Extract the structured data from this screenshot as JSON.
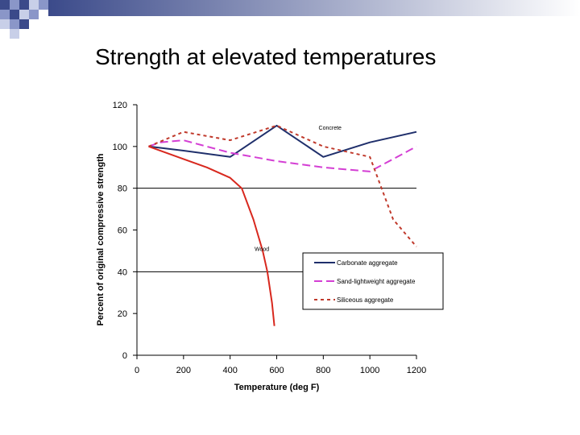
{
  "slide": {
    "title": "Strength at elevated temperatures"
  },
  "chart_data": {
    "type": "line",
    "xlabel": "Temperature (deg F)",
    "ylabel": "Percent of original compressive strength",
    "xlim": [
      0,
      1200
    ],
    "ylim": [
      0,
      120
    ],
    "xticks": [
      0,
      200,
      400,
      600,
      800,
      1000,
      1200
    ],
    "yticks": [
      0,
      20,
      40,
      60,
      80,
      100,
      120
    ],
    "grid": "horizontal lines at 40 and 80",
    "legend_position": "lower-right",
    "annotations": [
      {
        "text": "Concrete",
        "x": 780,
        "y": 108
      },
      {
        "text": "Wood",
        "x": 505,
        "y": 50
      }
    ],
    "series": [
      {
        "name": "Carbonate aggregate",
        "color": "#1f2f6b",
        "style": "solid",
        "in_legend": true,
        "x": [
          50,
          200,
          400,
          600,
          800,
          1000,
          1200
        ],
        "y": [
          100,
          98,
          95,
          110,
          95,
          102,
          107
        ]
      },
      {
        "name": "Sand-lightweight aggregate",
        "color": "#d43fd4",
        "style": "dashed",
        "in_legend": true,
        "x": [
          50,
          100,
          200,
          400,
          600,
          800,
          1000,
          1100,
          1200
        ],
        "y": [
          100,
          102,
          103,
          97,
          93,
          90,
          88,
          94,
          100
        ]
      },
      {
        "name": "Siliceous aggregate",
        "color": "#c0392b",
        "style": "dotted",
        "in_legend": true,
        "x": [
          50,
          200,
          400,
          600,
          800,
          1000,
          1100,
          1200
        ],
        "y": [
          100,
          107,
          103,
          110,
          100,
          95,
          65,
          52
        ]
      },
      {
        "name": "Wood",
        "color": "#d8281e",
        "style": "solid",
        "in_legend": false,
        "x": [
          50,
          200,
          300,
          400,
          450,
          500,
          540,
          560,
          580,
          590
        ],
        "y": [
          100,
          94,
          90,
          85,
          80,
          65,
          50,
          40,
          25,
          14
        ]
      }
    ]
  }
}
